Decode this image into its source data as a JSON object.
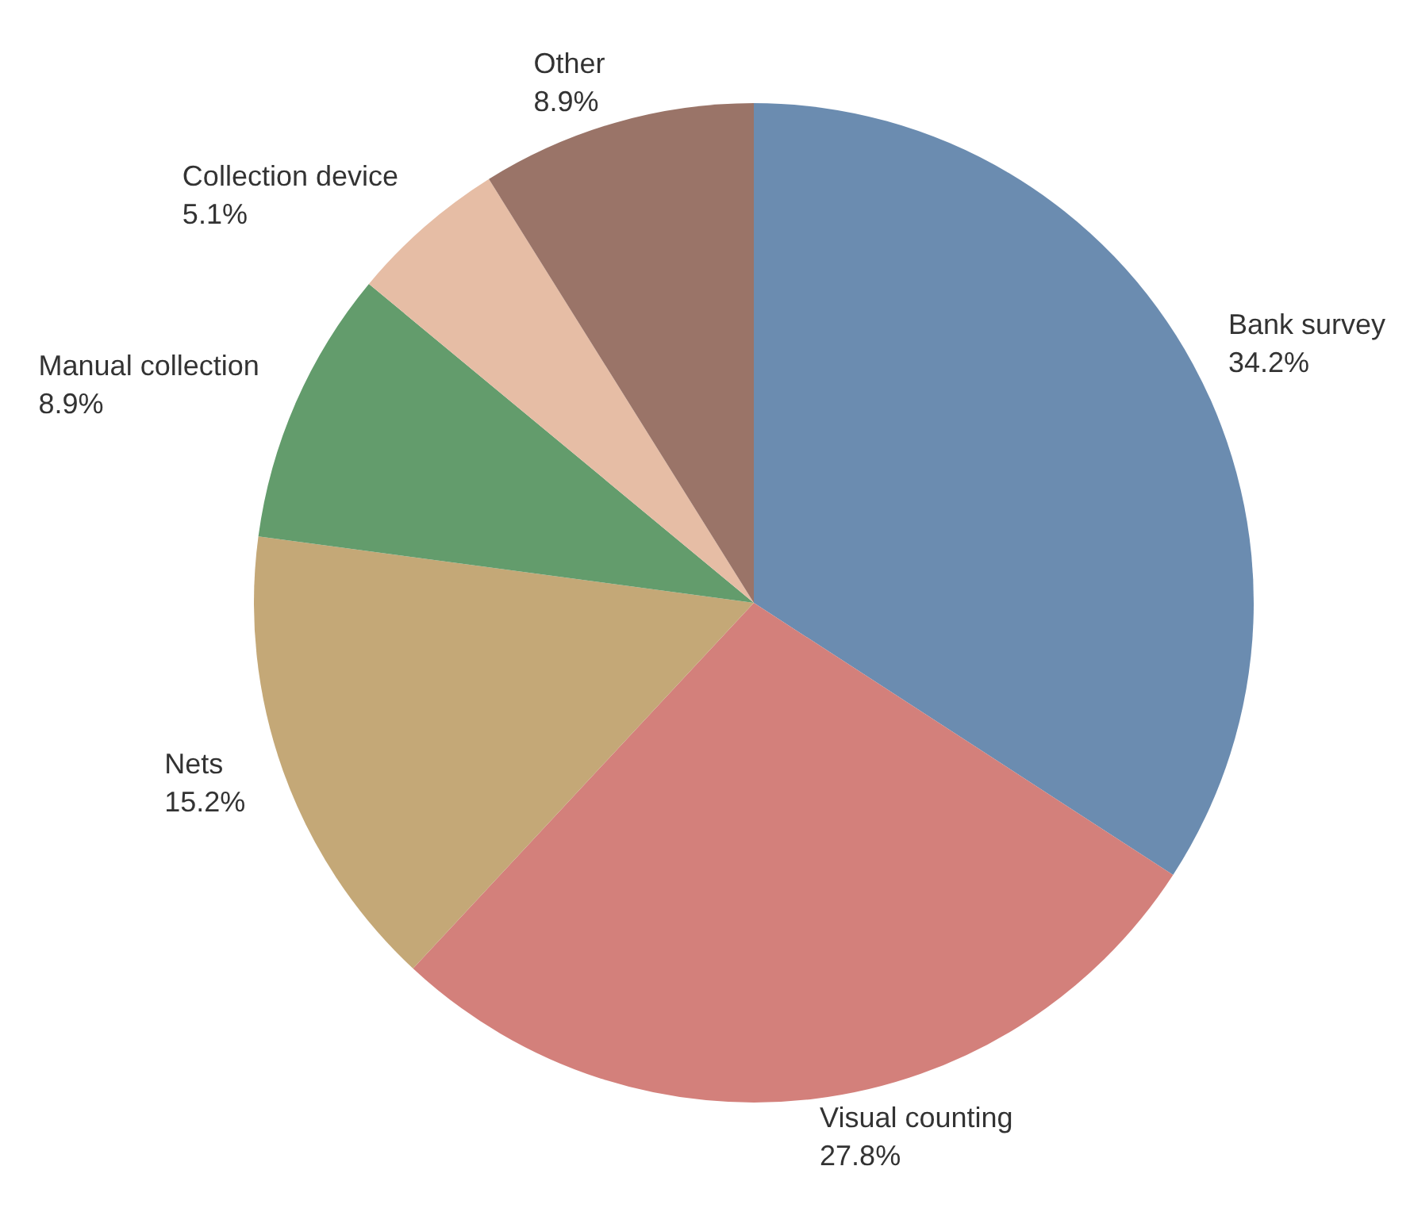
{
  "chart_data": {
    "type": "pie",
    "categories": [
      "Bank survey",
      "Visual counting",
      "Nets",
      "Manual collection",
      "Collection device",
      "Other"
    ],
    "values": [
      34.2,
      27.8,
      15.2,
      8.9,
      5.1,
      8.9
    ],
    "value_labels": [
      "34.2%",
      "27.8%",
      "15.2%",
      "8.9%",
      "5.1%",
      "8.9%"
    ],
    "colors": [
      "#6b8cb0",
      "#d3807b",
      "#c4a877",
      "#639c6c",
      "#e6bda5",
      "#9a7468"
    ],
    "legend": false
  }
}
